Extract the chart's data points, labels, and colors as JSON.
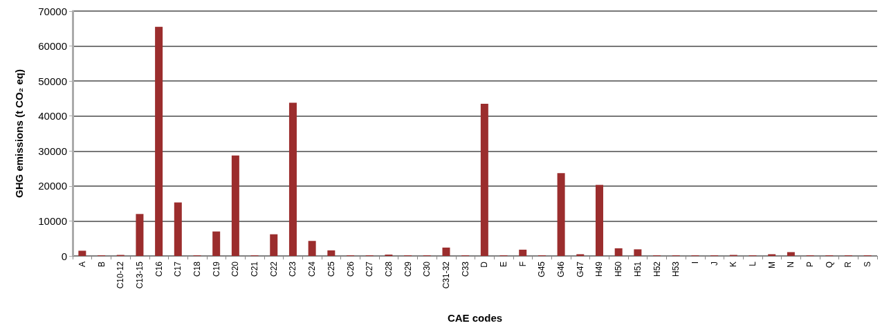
{
  "chart_data": {
    "type": "bar",
    "xlabel": "CAE codes",
    "ylabel": "GHG emissions (t CO₂ eq)",
    "categories": [
      "A",
      "B",
      "C10-12",
      "C13-15",
      "C16",
      "C17",
      "C18",
      "C19",
      "C20",
      "C21",
      "C22",
      "C23",
      "C24",
      "C25",
      "C26",
      "C27",
      "C28",
      "C29",
      "C30",
      "C31-32",
      "C33",
      "D",
      "E",
      "F",
      "G45",
      "G46",
      "G47",
      "H49",
      "H50",
      "H51",
      "H52",
      "H53",
      "I",
      "J",
      "K",
      "L",
      "M",
      "N",
      "P",
      "Q",
      "R",
      "S"
    ],
    "values": [
      1500,
      200,
      300,
      12000,
      65500,
      15300,
      200,
      7000,
      28700,
      200,
      6200,
      43800,
      4300,
      1600,
      200,
      200,
      400,
      200,
      200,
      2400,
      200,
      43500,
      200,
      1800,
      200,
      23700,
      500,
      20300,
      2200,
      1900,
      200,
      200,
      200,
      200,
      300,
      200,
      500,
      1100,
      200,
      200,
      200,
      200
    ],
    "color": "#9b2d2d",
    "ylim": [
      0,
      70000
    ],
    "yticks": [
      0,
      10000,
      20000,
      30000,
      40000,
      50000,
      60000,
      70000
    ],
    "grid": "y"
  }
}
